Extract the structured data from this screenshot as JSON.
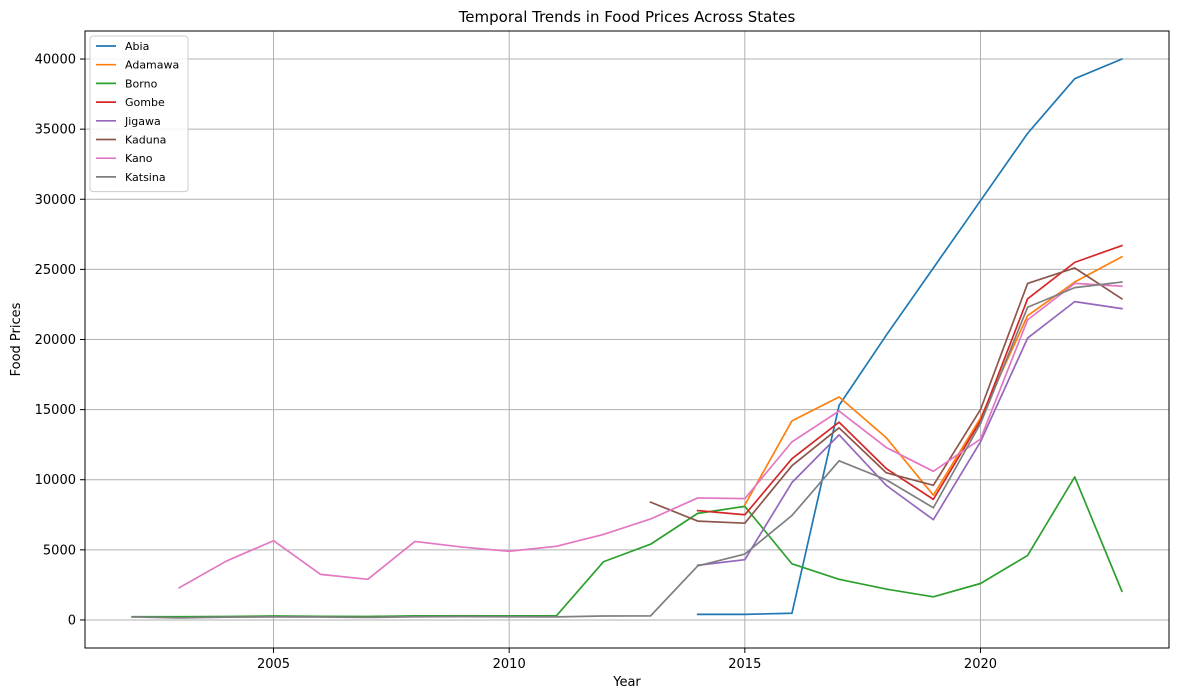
{
  "chart_data": {
    "type": "line",
    "title": "Temporal Trends in Food Prices Across States",
    "xlabel": "Year",
    "ylabel": "Food Prices",
    "xlim": [
      2001.0,
      2024.0
    ],
    "ylim": [
      -2000,
      42000
    ],
    "xticks": [
      2005,
      2010,
      2015,
      2020
    ],
    "yticks": [
      0,
      5000,
      10000,
      15000,
      20000,
      25000,
      30000,
      35000,
      40000
    ],
    "grid": true,
    "legend_position": "top-left",
    "series": [
      {
        "name": "Abia",
        "color": "#1f77b4",
        "x": [
          2014,
          2015,
          2016,
          2017,
          2018,
          2019,
          2020,
          2021,
          2022,
          2023
        ],
        "y": [
          400,
          400,
          480,
          15300,
          20300,
          25100,
          29900,
          34700,
          38600,
          40000
        ]
      },
      {
        "name": "Adamawa",
        "color": "#ff7f0e",
        "x": [
          2015,
          2016,
          2017,
          2018,
          2019,
          2020,
          2021,
          2022,
          2023
        ],
        "y": [
          8200,
          14200,
          15900,
          13000,
          8900,
          14400,
          21700,
          24100,
          25900
        ]
      },
      {
        "name": "Borno",
        "color": "#2ca02c",
        "x": [
          2002,
          2003,
          2004,
          2005,
          2006,
          2007,
          2008,
          2009,
          2010,
          2011,
          2012,
          2013,
          2014,
          2015,
          2016,
          2017,
          2018,
          2019,
          2020,
          2021,
          2022,
          2023
        ],
        "y": [
          230,
          230,
          250,
          280,
          260,
          250,
          290,
          290,
          290,
          290,
          4150,
          5400,
          7600,
          8100,
          4000,
          2900,
          2200,
          1650,
          2600,
          4600,
          10200,
          2050
        ]
      },
      {
        "name": "Gombe",
        "color": "#d62728",
        "x": [
          2014,
          2015,
          2016,
          2017,
          2018,
          2019,
          2020,
          2021,
          2022,
          2023
        ],
        "y": [
          7800,
          7500,
          11500,
          14100,
          10800,
          8600,
          14200,
          22900,
          25500,
          26700
        ]
      },
      {
        "name": "Jigawa",
        "color": "#9467bd",
        "x": [
          2014,
          2015,
          2016,
          2017,
          2018,
          2019,
          2020,
          2021,
          2022,
          2023
        ],
        "y": [
          3900,
          4300,
          9800,
          13200,
          9600,
          7150,
          12700,
          20100,
          22700,
          22200
        ]
      },
      {
        "name": "Kaduna",
        "color": "#8c564b",
        "x": [
          2013,
          2014,
          2015,
          2016,
          2017,
          2018,
          2019,
          2020,
          2021,
          2022,
          2023
        ],
        "y": [
          8400,
          7050,
          6900,
          11000,
          13700,
          10500,
          9600,
          15000,
          24000,
          25100,
          22900
        ]
      },
      {
        "name": "Kano",
        "color": "#e377c2",
        "x": [
          2003,
          2004,
          2005,
          2006,
          2007,
          2008,
          2009,
          2010,
          2011,
          2012,
          2013,
          2014,
          2015,
          2016,
          2017,
          2018,
          2019,
          2020,
          2021,
          2022,
          2023
        ],
        "y": [
          2300,
          4200,
          5650,
          3250,
          2900,
          5600,
          5200,
          4900,
          5250,
          6100,
          7200,
          8700,
          8650,
          12700,
          14900,
          12300,
          10600,
          12900,
          21400,
          24000,
          23800
        ]
      },
      {
        "name": "Katsina",
        "color": "#7f7f7f",
        "x": [
          2002,
          2003,
          2004,
          2005,
          2006,
          2007,
          2008,
          2009,
          2010,
          2011,
          2012,
          2013,
          2014,
          2015,
          2016,
          2017,
          2018,
          2019,
          2020,
          2021,
          2022,
          2023
        ],
        "y": [
          220,
          150,
          200,
          220,
          210,
          180,
          230,
          240,
          230,
          220,
          280,
          290,
          3850,
          4700,
          7450,
          11350,
          10000,
          8000,
          14000,
          22300,
          23700,
          24100
        ]
      }
    ]
  }
}
